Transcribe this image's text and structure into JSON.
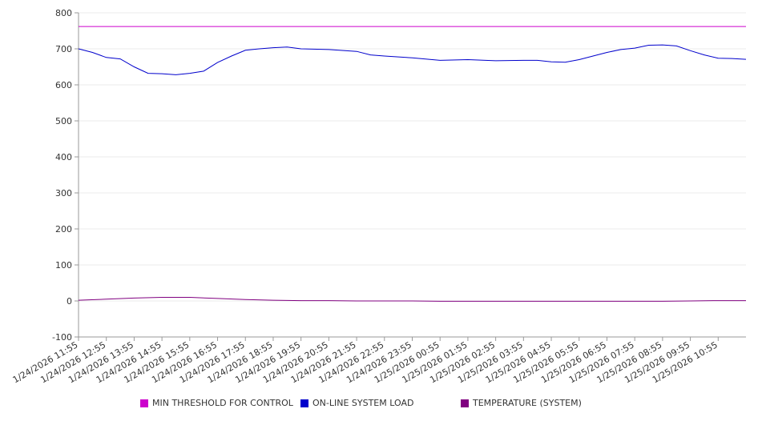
{
  "chart_data": {
    "type": "line",
    "ylim": [
      -100,
      800
    ],
    "yticks": [
      -100,
      0,
      100,
      200,
      300,
      400,
      500,
      600,
      700,
      800
    ],
    "x_tick_labels": [
      "1/24/2026 11:55",
      "1/24/2026 12:55",
      "1/24/2026 13:55",
      "1/24/2026 14:55",
      "1/24/2026 15:55",
      "1/24/2026 16:55",
      "1/24/2026 17:55",
      "1/24/2026 18:55",
      "1/24/2026 19:55",
      "1/24/2026 20:55",
      "1/24/2026 21:55",
      "1/24/2026 22:55",
      "1/24/2026 23:55",
      "1/25/2026 00:55",
      "1/25/2026 01:55",
      "1/25/2026 02:55",
      "1/25/2026 03:55",
      "1/25/2026 04:55",
      "1/25/2026 05:55",
      "1/25/2026 06:55",
      "1/25/2026 07:55",
      "1/25/2026 08:55",
      "1/25/2026 09:55",
      "1/25/2026 10:55"
    ],
    "x_range": [
      "1/24/2026 11:55",
      "1/25/2026 11:55"
    ],
    "grid": true,
    "legend_position": "bottom",
    "series": [
      {
        "name": "MIN THRESHOLD FOR CONTROL",
        "color": "#cc00cc",
        "points": [
          [
            "1/24/2026 11:55",
            762
          ],
          [
            "1/25/2026 11:55",
            762
          ]
        ]
      },
      {
        "name": "ON-LINE SYSTEM LOAD",
        "color": "#0000cc",
        "points": [
          [
            "1/24/2026 11:55",
            700
          ],
          [
            "1/24/2026 12:25",
            690
          ],
          [
            "1/24/2026 12:55",
            676
          ],
          [
            "1/24/2026 13:25",
            672
          ],
          [
            "1/24/2026 13:55",
            650
          ],
          [
            "1/24/2026 14:25",
            632
          ],
          [
            "1/24/2026 14:55",
            631
          ],
          [
            "1/24/2026 15:25",
            628
          ],
          [
            "1/24/2026 15:55",
            632
          ],
          [
            "1/24/2026 16:25",
            638
          ],
          [
            "1/24/2026 16:55",
            662
          ],
          [
            "1/24/2026 17:25",
            680
          ],
          [
            "1/24/2026 17:55",
            696
          ],
          [
            "1/24/2026 18:25",
            700
          ],
          [
            "1/24/2026 18:55",
            703
          ],
          [
            "1/24/2026 19:25",
            705
          ],
          [
            "1/24/2026 19:55",
            700
          ],
          [
            "1/24/2026 20:55",
            698
          ],
          [
            "1/24/2026 21:55",
            693
          ],
          [
            "1/24/2026 22:25",
            683
          ],
          [
            "1/24/2026 22:55",
            680
          ],
          [
            "1/24/2026 23:55",
            675
          ],
          [
            "1/25/2026 00:55",
            668
          ],
          [
            "1/25/2026 01:55",
            670
          ],
          [
            "1/25/2026 02:55",
            667
          ],
          [
            "1/25/2026 03:55",
            668
          ],
          [
            "1/25/2026 04:25",
            668
          ],
          [
            "1/25/2026 04:55",
            664
          ],
          [
            "1/25/2026 05:25",
            663
          ],
          [
            "1/25/2026 05:55",
            670
          ],
          [
            "1/25/2026 06:25",
            680
          ],
          [
            "1/25/2026 06:55",
            690
          ],
          [
            "1/25/2026 07:25",
            698
          ],
          [
            "1/25/2026 07:55",
            702
          ],
          [
            "1/25/2026 08:25",
            710
          ],
          [
            "1/25/2026 08:55",
            711
          ],
          [
            "1/25/2026 09:25",
            708
          ],
          [
            "1/25/2026 09:55",
            695
          ],
          [
            "1/25/2026 10:25",
            683
          ],
          [
            "1/25/2026 10:55",
            674
          ],
          [
            "1/25/2026 11:25",
            673
          ],
          [
            "1/25/2026 11:55",
            671
          ]
        ]
      },
      {
        "name": "TEMPERATURE (SYSTEM)",
        "color": "#800080",
        "points": [
          [
            "1/24/2026 11:55",
            2
          ],
          [
            "1/24/2026 12:55",
            5
          ],
          [
            "1/24/2026 13:55",
            8
          ],
          [
            "1/24/2026 14:55",
            10
          ],
          [
            "1/24/2026 15:55",
            10
          ],
          [
            "1/24/2026 16:55",
            7
          ],
          [
            "1/24/2026 17:55",
            4
          ],
          [
            "1/24/2026 18:55",
            2
          ],
          [
            "1/24/2026 19:55",
            1
          ],
          [
            "1/24/2026 20:55",
            1
          ],
          [
            "1/24/2026 21:55",
            0
          ],
          [
            "1/24/2026 22:55",
            0
          ],
          [
            "1/24/2026 23:55",
            0
          ],
          [
            "1/25/2026 00:55",
            -1
          ],
          [
            "1/25/2026 01:55",
            -1
          ],
          [
            "1/25/2026 02:55",
            -1
          ],
          [
            "1/25/2026 03:55",
            -1
          ],
          [
            "1/25/2026 04:55",
            -1
          ],
          [
            "1/25/2026 05:55",
            -1
          ],
          [
            "1/25/2026 06:55",
            -1
          ],
          [
            "1/25/2026 07:55",
            -1
          ],
          [
            "1/25/2026 08:55",
            -1
          ],
          [
            "1/25/2026 09:55",
            0
          ],
          [
            "1/25/2026 10:55",
            1
          ],
          [
            "1/25/2026 11:55",
            1
          ]
        ]
      }
    ]
  }
}
